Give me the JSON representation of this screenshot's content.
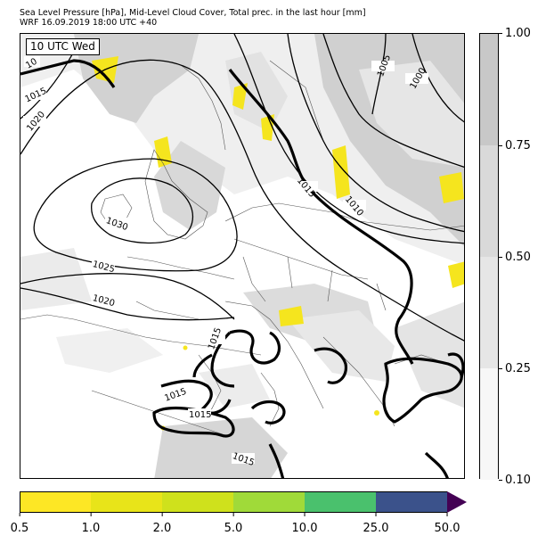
{
  "title_line1": "Sea Level Pressure [hPa], Mid-Level Cloud Cover, Total prec. in the last hour [mm]",
  "title_line2": "WRF 16.09.2019 18:00 UTC +40",
  "valid_time": "10 UTC Wed",
  "cloud_colorbar": {
    "ticks": [
      "0.10",
      "0.25",
      "0.50",
      "0.75",
      "1.00"
    ],
    "colors": [
      "#f7f7f7",
      "#e6e6e6",
      "#d9d9d9",
      "#c8c8c8"
    ]
  },
  "precip_colorbar": {
    "ticks": [
      "0.5",
      "1.0",
      "2.0",
      "5.0",
      "10.0",
      "25.0",
      "50.0"
    ],
    "colors": [
      "#fde725",
      "#e8e419",
      "#cfe11c",
      "#a0da39",
      "#4ac16d",
      "#2db27d",
      "#3b528b",
      "#440154"
    ]
  },
  "isobar_labels": [
    {
      "id": "l1015a",
      "text": "1015"
    },
    {
      "id": "l1020a",
      "text": "1020"
    },
    {
      "id": "l1030",
      "text": "1030"
    },
    {
      "id": "l1025",
      "text": "1025"
    },
    {
      "id": "l1020b",
      "text": "1020"
    },
    {
      "id": "l1005",
      "text": "1005"
    },
    {
      "id": "l1000",
      "text": "1000"
    },
    {
      "id": "l1015b",
      "text": "1015"
    },
    {
      "id": "l1010",
      "text": "1010"
    },
    {
      "id": "l1015c",
      "text": "1015"
    },
    {
      "id": "l1015d",
      "text": "1015"
    },
    {
      "id": "l1015e",
      "text": "1015"
    },
    {
      "id": "l1015f",
      "text": "1015"
    },
    {
      "id": "l10x",
      "text": "10"
    }
  ]
}
